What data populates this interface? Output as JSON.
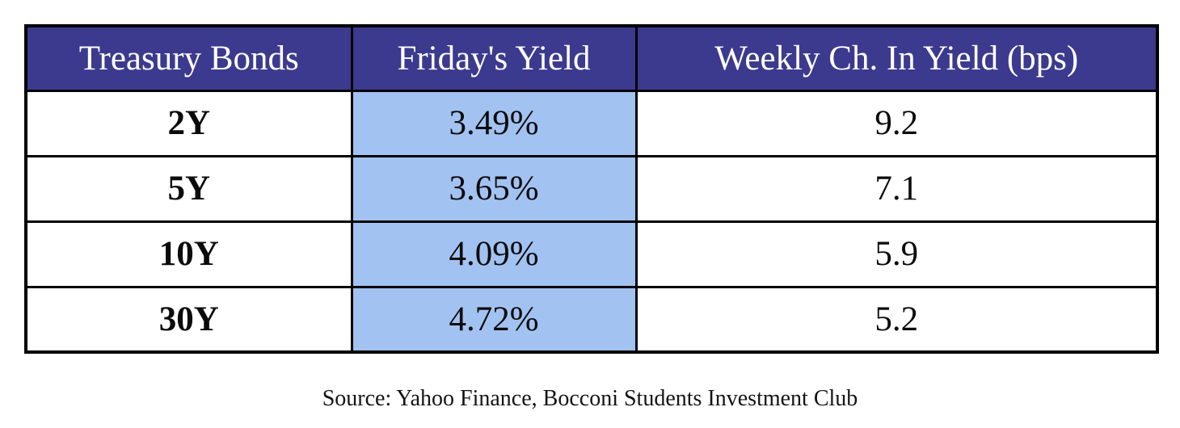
{
  "source": "Source: Yahoo Finance, Bocconi Students Investment Club",
  "colors": {
    "header_bg": "#3C3A8E",
    "yield_col_bg": "#A2C3F2",
    "border": "#000000",
    "header_text": "#FFFFFF"
  },
  "chart_data": {
    "type": "table",
    "title": "",
    "columns": [
      "Treasury Bonds",
      "Friday's Yield",
      "Weekly Ch. In Yield (bps)"
    ],
    "rows": [
      [
        "2Y",
        "3.49%",
        "9.2"
      ],
      [
        "5Y",
        "3.65%",
        "7.1"
      ],
      [
        "10Y",
        "4.09%",
        "5.9"
      ],
      [
        "30Y",
        "4.72%",
        "5.2"
      ]
    ],
    "yields_pct": [
      3.49,
      3.65,
      4.09,
      4.72
    ],
    "weekly_change_bps": [
      9.2,
      7.1,
      5.9,
      5.2
    ],
    "layout_hints": {
      "header_style": "dark-indigo background, white serif text",
      "highlight_column": "Friday's Yield (light blue)",
      "grid": "thick black borders, all cells"
    }
  },
  "table": {
    "columns": [
      {
        "label": "Treasury Bonds"
      },
      {
        "label": "Friday's Yield"
      },
      {
        "label": "Weekly Ch. In Yield (bps)"
      }
    ],
    "rows": [
      {
        "bond": "2Y",
        "yield": "3.49%",
        "weekly_change_bps": "9.2"
      },
      {
        "bond": "5Y",
        "yield": "3.65%",
        "weekly_change_bps": "7.1"
      },
      {
        "bond": "10Y",
        "yield": "4.09%",
        "weekly_change_bps": "5.9"
      },
      {
        "bond": "30Y",
        "yield": "4.72%",
        "weekly_change_bps": "5.2"
      }
    ]
  }
}
